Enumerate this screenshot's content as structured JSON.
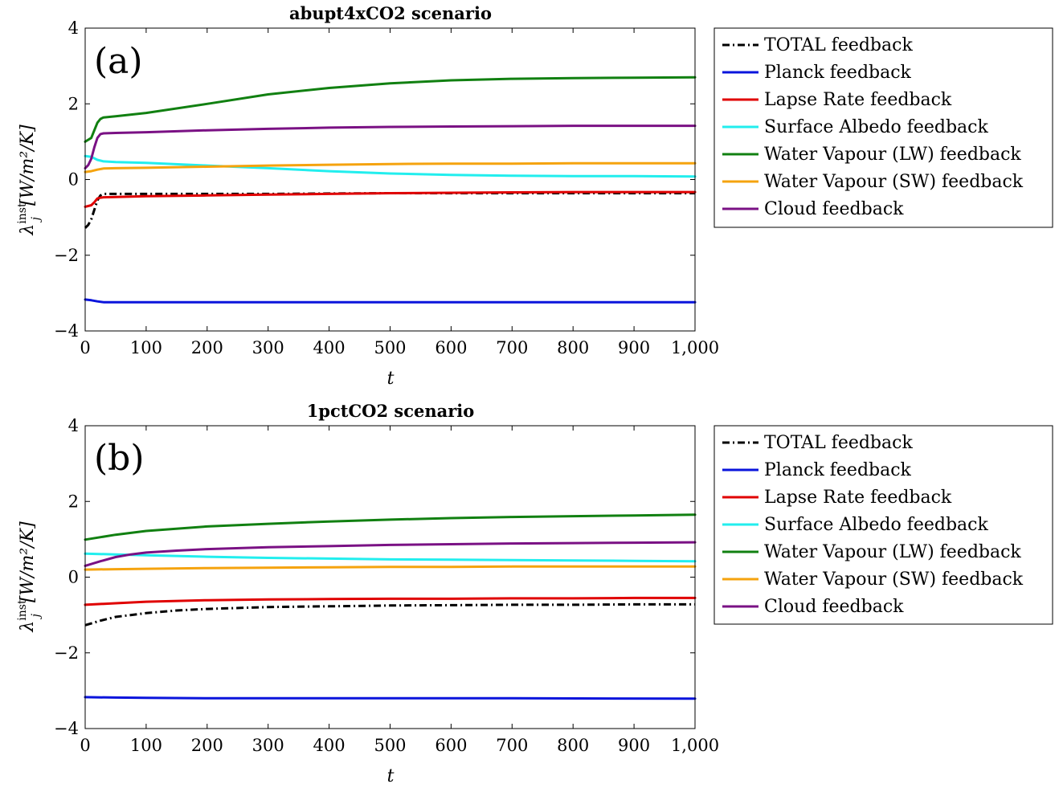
{
  "chart_data": [
    {
      "type": "line",
      "title": "abupt4xCO2 scenario",
      "panel_label": "(a)",
      "xlabel": "t",
      "ylabel": "λ_j^inst [W/m²/K]",
      "ylabel_parts": {
        "sym": "λ",
        "sub": "j",
        "sup": "inst",
        "units": "[W/m²/K]"
      },
      "xlim": [
        0,
        1000
      ],
      "ylim": [
        -4,
        4
      ],
      "xticks": [
        0,
        100,
        200,
        300,
        400,
        500,
        600,
        700,
        800,
        900,
        1000
      ],
      "xtick_labels": [
        "0",
        "100",
        "200",
        "300",
        "400",
        "500",
        "600",
        "700",
        "800",
        "900",
        "1,000"
      ],
      "yticks": [
        -4,
        -2,
        0,
        2,
        4
      ],
      "ytick_labels": [
        "−4",
        "−2",
        "0",
        "2",
        "4"
      ],
      "grid": false,
      "legend_position": "outside-right",
      "series": [
        {
          "name": "TOTAL feedback",
          "color": "#000000",
          "dash": "dashdot",
          "x": [
            0,
            5,
            10,
            15,
            20,
            25,
            30,
            40,
            60,
            100,
            200,
            300,
            400,
            500,
            600,
            700,
            800,
            900,
            1000
          ],
          "y": [
            -1.28,
            -1.2,
            -1.05,
            -0.8,
            -0.55,
            -0.42,
            -0.38,
            -0.38,
            -0.38,
            -0.38,
            -0.38,
            -0.38,
            -0.37,
            -0.36,
            -0.36,
            -0.36,
            -0.36,
            -0.36,
            -0.36
          ]
        },
        {
          "name": "Planck feedback",
          "color": "#0a14dc",
          "dash": "solid",
          "x": [
            0,
            10,
            20,
            30,
            50,
            100,
            300,
            500,
            700,
            1000
          ],
          "y": [
            -3.17,
            -3.19,
            -3.22,
            -3.24,
            -3.24,
            -3.24,
            -3.24,
            -3.24,
            -3.24,
            -3.24
          ]
        },
        {
          "name": "Lapse Rate feedback",
          "color": "#e00000",
          "dash": "solid",
          "x": [
            0,
            10,
            15,
            20,
            25,
            30,
            50,
            100,
            200,
            300,
            400,
            500,
            600,
            700,
            800,
            900,
            1000
          ],
          "y": [
            -0.72,
            -0.68,
            -0.6,
            -0.5,
            -0.48,
            -0.47,
            -0.46,
            -0.44,
            -0.42,
            -0.4,
            -0.38,
            -0.36,
            -0.35,
            -0.34,
            -0.33,
            -0.33,
            -0.33
          ]
        },
        {
          "name": "Surface Albedo feedback",
          "color": "#22eeee",
          "dash": "solid",
          "x": [
            0,
            10,
            20,
            30,
            50,
            100,
            200,
            300,
            400,
            500,
            600,
            700,
            800,
            900,
            1000
          ],
          "y": [
            0.62,
            0.6,
            0.52,
            0.48,
            0.46,
            0.44,
            0.37,
            0.3,
            0.22,
            0.16,
            0.12,
            0.1,
            0.09,
            0.09,
            0.08
          ]
        },
        {
          "name": "Water Vapour (LW) feedback",
          "color": "#118011",
          "dash": "solid",
          "x": [
            0,
            10,
            15,
            20,
            25,
            30,
            50,
            100,
            200,
            300,
            400,
            500,
            600,
            700,
            800,
            900,
            1000
          ],
          "y": [
            1.0,
            1.1,
            1.3,
            1.5,
            1.6,
            1.64,
            1.67,
            1.76,
            2.0,
            2.25,
            2.42,
            2.54,
            2.62,
            2.66,
            2.68,
            2.69,
            2.7
          ]
        },
        {
          "name": "Water Vapour (SW) feedback",
          "color": "#f5a30e",
          "dash": "solid",
          "x": [
            0,
            10,
            20,
            30,
            50,
            100,
            200,
            300,
            400,
            500,
            600,
            700,
            800,
            900,
            1000
          ],
          "y": [
            0.2,
            0.22,
            0.26,
            0.29,
            0.3,
            0.31,
            0.34,
            0.37,
            0.39,
            0.41,
            0.42,
            0.42,
            0.43,
            0.43,
            0.43
          ]
        },
        {
          "name": "Cloud feedback",
          "color": "#7a1184",
          "dash": "solid",
          "x": [
            0,
            5,
            10,
            15,
            20,
            25,
            30,
            50,
            100,
            200,
            300,
            400,
            500,
            600,
            700,
            800,
            900,
            1000
          ],
          "y": [
            0.3,
            0.38,
            0.55,
            0.85,
            1.1,
            1.2,
            1.22,
            1.23,
            1.25,
            1.3,
            1.34,
            1.37,
            1.39,
            1.4,
            1.41,
            1.42,
            1.42,
            1.42
          ]
        }
      ]
    },
    {
      "type": "line",
      "title": "1pctCO2 scenario",
      "panel_label": "(b)",
      "xlabel": "t",
      "ylabel": "λ_j^inst [W/m²/K]",
      "ylabel_parts": {
        "sym": "λ",
        "sub": "j",
        "sup": "inst",
        "units": "[W/m²/K]"
      },
      "xlim": [
        0,
        1000
      ],
      "ylim": [
        -4,
        4
      ],
      "xticks": [
        0,
        100,
        200,
        300,
        400,
        500,
        600,
        700,
        800,
        900,
        1000
      ],
      "xtick_labels": [
        "0",
        "100",
        "200",
        "300",
        "400",
        "500",
        "600",
        "700",
        "800",
        "900",
        "1,000"
      ],
      "yticks": [
        -4,
        -2,
        0,
        2,
        4
      ],
      "ytick_labels": [
        "−4",
        "−2",
        "0",
        "2",
        "4"
      ],
      "grid": false,
      "legend_position": "outside-right",
      "series": [
        {
          "name": "TOTAL feedback",
          "color": "#000000",
          "dash": "dashdot",
          "x": [
            0,
            25,
            50,
            100,
            150,
            200,
            300,
            400,
            500,
            600,
            700,
            800,
            900,
            1000
          ],
          "y": [
            -1.27,
            -1.15,
            -1.05,
            -0.95,
            -0.88,
            -0.84,
            -0.79,
            -0.77,
            -0.75,
            -0.74,
            -0.73,
            -0.73,
            -0.72,
            -0.72
          ]
        },
        {
          "name": "Planck feedback",
          "color": "#0a14dc",
          "dash": "solid",
          "x": [
            0,
            50,
            100,
            200,
            300,
            500,
            700,
            1000
          ],
          "y": [
            -3.17,
            -3.18,
            -3.19,
            -3.2,
            -3.2,
            -3.2,
            -3.2,
            -3.21
          ]
        },
        {
          "name": "Lapse Rate feedback",
          "color": "#e00000",
          "dash": "solid",
          "x": [
            0,
            50,
            100,
            200,
            300,
            400,
            500,
            600,
            700,
            800,
            900,
            1000
          ],
          "y": [
            -0.73,
            -0.69,
            -0.65,
            -0.61,
            -0.59,
            -0.58,
            -0.57,
            -0.57,
            -0.56,
            -0.56,
            -0.55,
            -0.55
          ]
        },
        {
          "name": "Surface Albedo feedback",
          "color": "#22eeee",
          "dash": "solid",
          "x": [
            0,
            50,
            100,
            200,
            300,
            400,
            500,
            600,
            700,
            800,
            900,
            1000
          ],
          "y": [
            0.62,
            0.6,
            0.58,
            0.54,
            0.51,
            0.49,
            0.47,
            0.46,
            0.45,
            0.44,
            0.43,
            0.42
          ]
        },
        {
          "name": "Water Vapour (LW) feedback",
          "color": "#118011",
          "dash": "solid",
          "x": [
            0,
            50,
            100,
            200,
            300,
            400,
            500,
            600,
            700,
            800,
            900,
            1000
          ],
          "y": [
            0.99,
            1.12,
            1.22,
            1.34,
            1.41,
            1.47,
            1.52,
            1.56,
            1.59,
            1.61,
            1.63,
            1.65
          ]
        },
        {
          "name": "Water Vapour (SW) feedback",
          "color": "#f5a30e",
          "dash": "solid",
          "x": [
            0,
            50,
            100,
            200,
            300,
            400,
            500,
            600,
            700,
            800,
            900,
            1000
          ],
          "y": [
            0.2,
            0.21,
            0.22,
            0.24,
            0.25,
            0.26,
            0.27,
            0.27,
            0.28,
            0.28,
            0.28,
            0.28
          ]
        },
        {
          "name": "Cloud feedback",
          "color": "#7a1184",
          "dash": "solid",
          "x": [
            0,
            25,
            50,
            75,
            100,
            150,
            200,
            300,
            400,
            500,
            600,
            700,
            800,
            900,
            1000
          ],
          "y": [
            0.3,
            0.42,
            0.53,
            0.6,
            0.65,
            0.7,
            0.74,
            0.79,
            0.82,
            0.85,
            0.87,
            0.89,
            0.9,
            0.91,
            0.92
          ]
        }
      ]
    }
  ]
}
